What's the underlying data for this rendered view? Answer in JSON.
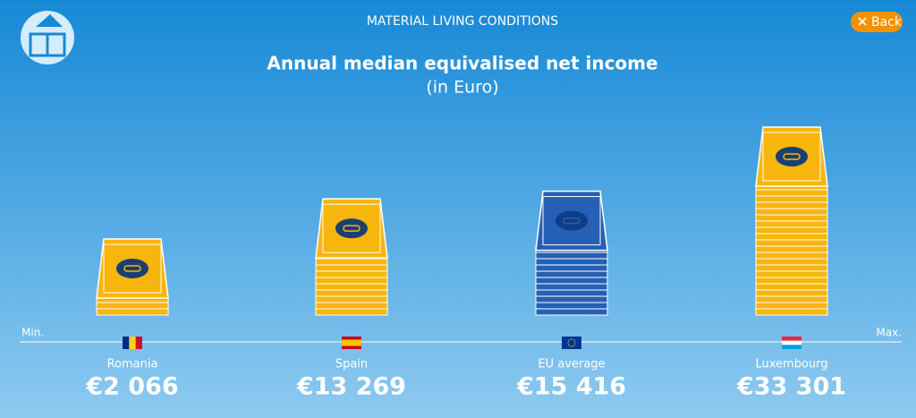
{
  "header": {
    "title": "MATERIAL LIVING CONDITIONS",
    "back": "Back"
  },
  "chart_data": {
    "type": "bar",
    "title": "Annual median equivalised net income",
    "subtitle": "(in Euro)",
    "categories": [
      "Romania",
      "Spain",
      "EU average",
      "Luxembourg"
    ],
    "values": [
      2066,
      13269,
      15416,
      33301
    ],
    "value_labels": [
      "€2 066",
      "€13 269",
      "€15 416",
      "€33 301"
    ],
    "colors": [
      "#f7b60e",
      "#f7b60e",
      "#2660b4",
      "#f7b60e"
    ],
    "axis_min_label": "Min.",
    "axis_max_label": "Max."
  }
}
